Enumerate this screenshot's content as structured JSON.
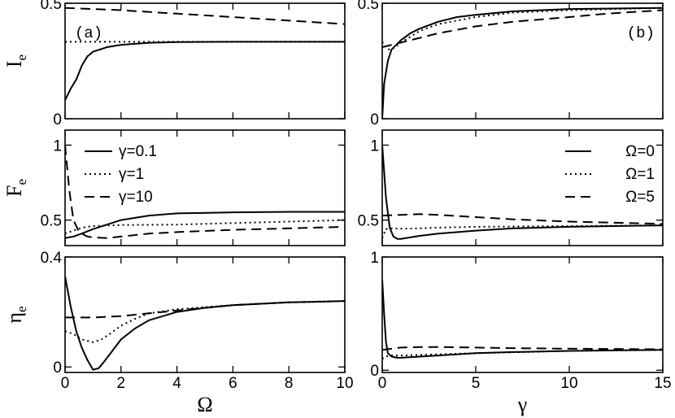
{
  "chart_data": [
    {
      "id": "Ie-vs-Omega",
      "type": "line",
      "panel_label": "(a)",
      "ylabel": "I",
      "ylabel_sub": "e",
      "xlabel": "",
      "xlim": [
        0,
        10
      ],
      "ylim": [
        0,
        0.5
      ],
      "xticks": [
        0,
        2,
        4,
        6,
        8,
        10
      ],
      "yticks": [
        0,
        0.5
      ],
      "xtick_labels": [],
      "ytick_labels": [
        "0",
        "0.5"
      ],
      "series": [
        {
          "style": "solid",
          "x": [
            0,
            0.2,
            0.4,
            0.6,
            0.8,
            1,
            1.5,
            2,
            3,
            4,
            6,
            8,
            10
          ],
          "y": [
            0.08,
            0.13,
            0.17,
            0.23,
            0.27,
            0.29,
            0.31,
            0.32,
            0.329,
            0.332,
            0.333,
            0.333,
            0.333
          ]
        },
        {
          "style": "dotted",
          "x": [
            0,
            2,
            4,
            6,
            8,
            10
          ],
          "y": [
            0.333,
            0.333,
            0.333,
            0.333,
            0.333,
            0.333
          ]
        },
        {
          "style": "dashed",
          "x": [
            0,
            2,
            4,
            6,
            8,
            10
          ],
          "y": [
            0.48,
            0.47,
            0.455,
            0.44,
            0.425,
            0.41
          ]
        }
      ]
    },
    {
      "id": "Ie-vs-gamma",
      "type": "line",
      "panel_label": "(b)",
      "ylabel": "",
      "ylabel_sub": "",
      "xlabel": "",
      "xlim": [
        0,
        15
      ],
      "ylim": [
        0,
        0.5
      ],
      "xticks": [
        0,
        5,
        10,
        15
      ],
      "yticks": [
        0,
        0.5
      ],
      "xtick_labels": [],
      "ytick_labels": [
        "0",
        "0.5"
      ],
      "series": [
        {
          "style": "solid",
          "x": [
            0,
            0.1,
            0.3,
            0.5,
            1,
            1.5,
            2,
            3,
            4,
            5,
            7,
            10,
            15
          ],
          "y": [
            0,
            0.15,
            0.25,
            0.3,
            0.34,
            0.37,
            0.39,
            0.42,
            0.44,
            0.45,
            0.465,
            0.475,
            0.48
          ]
        },
        {
          "style": "dotted",
          "x": [
            0,
            0.3,
            0.5,
            1,
            2,
            3,
            5,
            7,
            10,
            15
          ],
          "y": [
            0.333,
            0.3,
            0.3,
            0.33,
            0.38,
            0.41,
            0.44,
            0.46,
            0.47,
            0.48
          ]
        },
        {
          "style": "dashed",
          "x": [
            0,
            1,
            2,
            3,
            5,
            7,
            10,
            12,
            15
          ],
          "y": [
            0.31,
            0.33,
            0.35,
            0.37,
            0.4,
            0.42,
            0.44,
            0.455,
            0.47
          ]
        }
      ]
    },
    {
      "id": "Fe-vs-Omega",
      "type": "line",
      "panel_label": "",
      "ylabel": "F",
      "ylabel_sub": "e",
      "xlabel": "",
      "xlim": [
        0,
        10
      ],
      "ylim": [
        0.33,
        1.1
      ],
      "xticks": [
        0,
        2,
        4,
        6,
        8,
        10
      ],
      "yticks": [
        0.5,
        1
      ],
      "xtick_labels": [],
      "ytick_labels": [
        "0.5",
        "1"
      ],
      "legend_position": "top-left",
      "series": [
        {
          "name": "γ=0.1",
          "style": "solid",
          "x": [
            0,
            0.3,
            0.6,
            1,
            1.5,
            2,
            3,
            4,
            6,
            8,
            10
          ],
          "y": [
            0.38,
            0.39,
            0.41,
            0.44,
            0.47,
            0.5,
            0.53,
            0.545,
            0.552,
            0.555,
            0.555
          ]
        },
        {
          "name": "γ=1",
          "style": "dotted",
          "x": [
            0,
            0.3,
            0.6,
            1,
            2,
            4,
            6,
            8,
            10
          ],
          "y": [
            0.41,
            0.43,
            0.45,
            0.46,
            0.467,
            0.47,
            0.48,
            0.49,
            0.5
          ]
        },
        {
          "name": "γ=10",
          "style": "dashed",
          "x": [
            0,
            0.15,
            0.3,
            0.5,
            0.8,
            1,
            1.5,
            2,
            3,
            4,
            6,
            8,
            10
          ],
          "y": [
            1.0,
            0.7,
            0.5,
            0.42,
            0.39,
            0.385,
            0.38,
            0.39,
            0.41,
            0.42,
            0.435,
            0.445,
            0.455
          ]
        }
      ]
    },
    {
      "id": "Fe-vs-gamma",
      "type": "line",
      "panel_label": "",
      "ylabel": "",
      "ylabel_sub": "",
      "xlabel": "",
      "xlim": [
        0,
        15
      ],
      "ylim": [
        0.33,
        1.1
      ],
      "xticks": [
        0,
        5,
        10,
        15
      ],
      "yticks": [
        0.5,
        1
      ],
      "xtick_labels": [],
      "ytick_labels": [
        "0.5",
        "1"
      ],
      "legend_position": "top-right",
      "series": [
        {
          "name": "Ω=0",
          "style": "solid",
          "x": [
            0,
            0.2,
            0.4,
            0.6,
            0.8,
            1,
            1.5,
            2,
            3,
            5,
            7,
            10,
            15
          ],
          "y": [
            1.0,
            0.65,
            0.45,
            0.39,
            0.375,
            0.375,
            0.385,
            0.395,
            0.41,
            0.43,
            0.445,
            0.455,
            0.465
          ]
        },
        {
          "name": "Ω=1",
          "style": "dotted",
          "x": [
            0,
            0.2,
            0.5,
            1,
            2,
            3,
            5,
            10,
            15
          ],
          "y": [
            0.38,
            0.44,
            0.445,
            0.443,
            0.445,
            0.45,
            0.455,
            0.46,
            0.465
          ]
        },
        {
          "name": "Ω=5",
          "style": "dashed",
          "x": [
            0,
            1,
            2,
            3,
            5,
            7,
            10,
            15
          ],
          "y": [
            0.53,
            0.535,
            0.54,
            0.535,
            0.52,
            0.505,
            0.49,
            0.475
          ]
        }
      ]
    },
    {
      "id": "eta-vs-Omega",
      "type": "line",
      "panel_label": "",
      "ylabel": "η",
      "ylabel_sub": "e",
      "xlabel": "Ω",
      "xlim": [
        0,
        10
      ],
      "ylim": [
        -0.02,
        0.4
      ],
      "xticks": [
        0,
        2,
        4,
        6,
        8,
        10
      ],
      "yticks": [
        0,
        0.4
      ],
      "xtick_labels": [
        "0",
        "2",
        "4",
        "6",
        "8",
        "10"
      ],
      "ytick_labels": [
        "0",
        "0.4"
      ],
      "series": [
        {
          "style": "solid",
          "x": [
            0,
            0.2,
            0.4,
            0.6,
            0.8,
            1,
            1.2,
            1.4,
            1.7,
            2,
            2.5,
            3,
            4,
            5,
            6,
            7,
            8,
            9,
            10
          ],
          "y": [
            0.33,
            0.22,
            0.13,
            0.07,
            0.025,
            -0.01,
            -0.005,
            0.02,
            0.06,
            0.1,
            0.14,
            0.17,
            0.2,
            0.215,
            0.225,
            0.23,
            0.235,
            0.237,
            0.24
          ]
        },
        {
          "style": "dotted",
          "x": [
            0,
            0.3,
            0.6,
            1,
            1.3,
            1.6,
            2,
            2.5,
            3,
            4,
            6,
            8,
            10
          ],
          "y": [
            0.13,
            0.12,
            0.1,
            0.09,
            0.1,
            0.12,
            0.15,
            0.175,
            0.195,
            0.21,
            0.225,
            0.235,
            0.24
          ]
        },
        {
          "style": "dashed",
          "x": [
            0,
            1,
            2,
            3,
            4,
            5,
            6,
            8,
            10
          ],
          "y": [
            0.18,
            0.18,
            0.185,
            0.195,
            0.205,
            0.215,
            0.225,
            0.235,
            0.24
          ]
        }
      ]
    },
    {
      "id": "eta-vs-gamma",
      "type": "line",
      "panel_label": "",
      "ylabel": "",
      "ylabel_sub": "",
      "xlabel": "γ",
      "xlim": [
        0,
        15
      ],
      "ylim": [
        -0.02,
        1
      ],
      "xticks": [
        0,
        5,
        10,
        15
      ],
      "yticks": [
        0,
        1
      ],
      "xtick_labels": [
        "0",
        "5",
        "10",
        "15"
      ],
      "ytick_labels": [
        "0",
        "1"
      ],
      "series": [
        {
          "style": "solid",
          "x": [
            0,
            0.1,
            0.2,
            0.3,
            0.5,
            0.8,
            1,
            2,
            3,
            5,
            7,
            10,
            15
          ],
          "y": [
            0.8,
            0.5,
            0.25,
            0.15,
            0.12,
            0.11,
            0.11,
            0.12,
            0.13,
            0.15,
            0.16,
            0.17,
            0.18
          ]
        },
        {
          "style": "dotted",
          "x": [
            0,
            0.2,
            0.4,
            0.7,
            1,
            2,
            3,
            5,
            10,
            15
          ],
          "y": [
            0.1,
            0.12,
            0.13,
            0.13,
            0.13,
            0.135,
            0.14,
            0.15,
            0.17,
            0.18
          ]
        },
        {
          "style": "dashed",
          "x": [
            0,
            1,
            2,
            3,
            5,
            7,
            10,
            15
          ],
          "y": [
            0.18,
            0.2,
            0.205,
            0.205,
            0.2,
            0.195,
            0.19,
            0.185
          ]
        }
      ]
    }
  ]
}
